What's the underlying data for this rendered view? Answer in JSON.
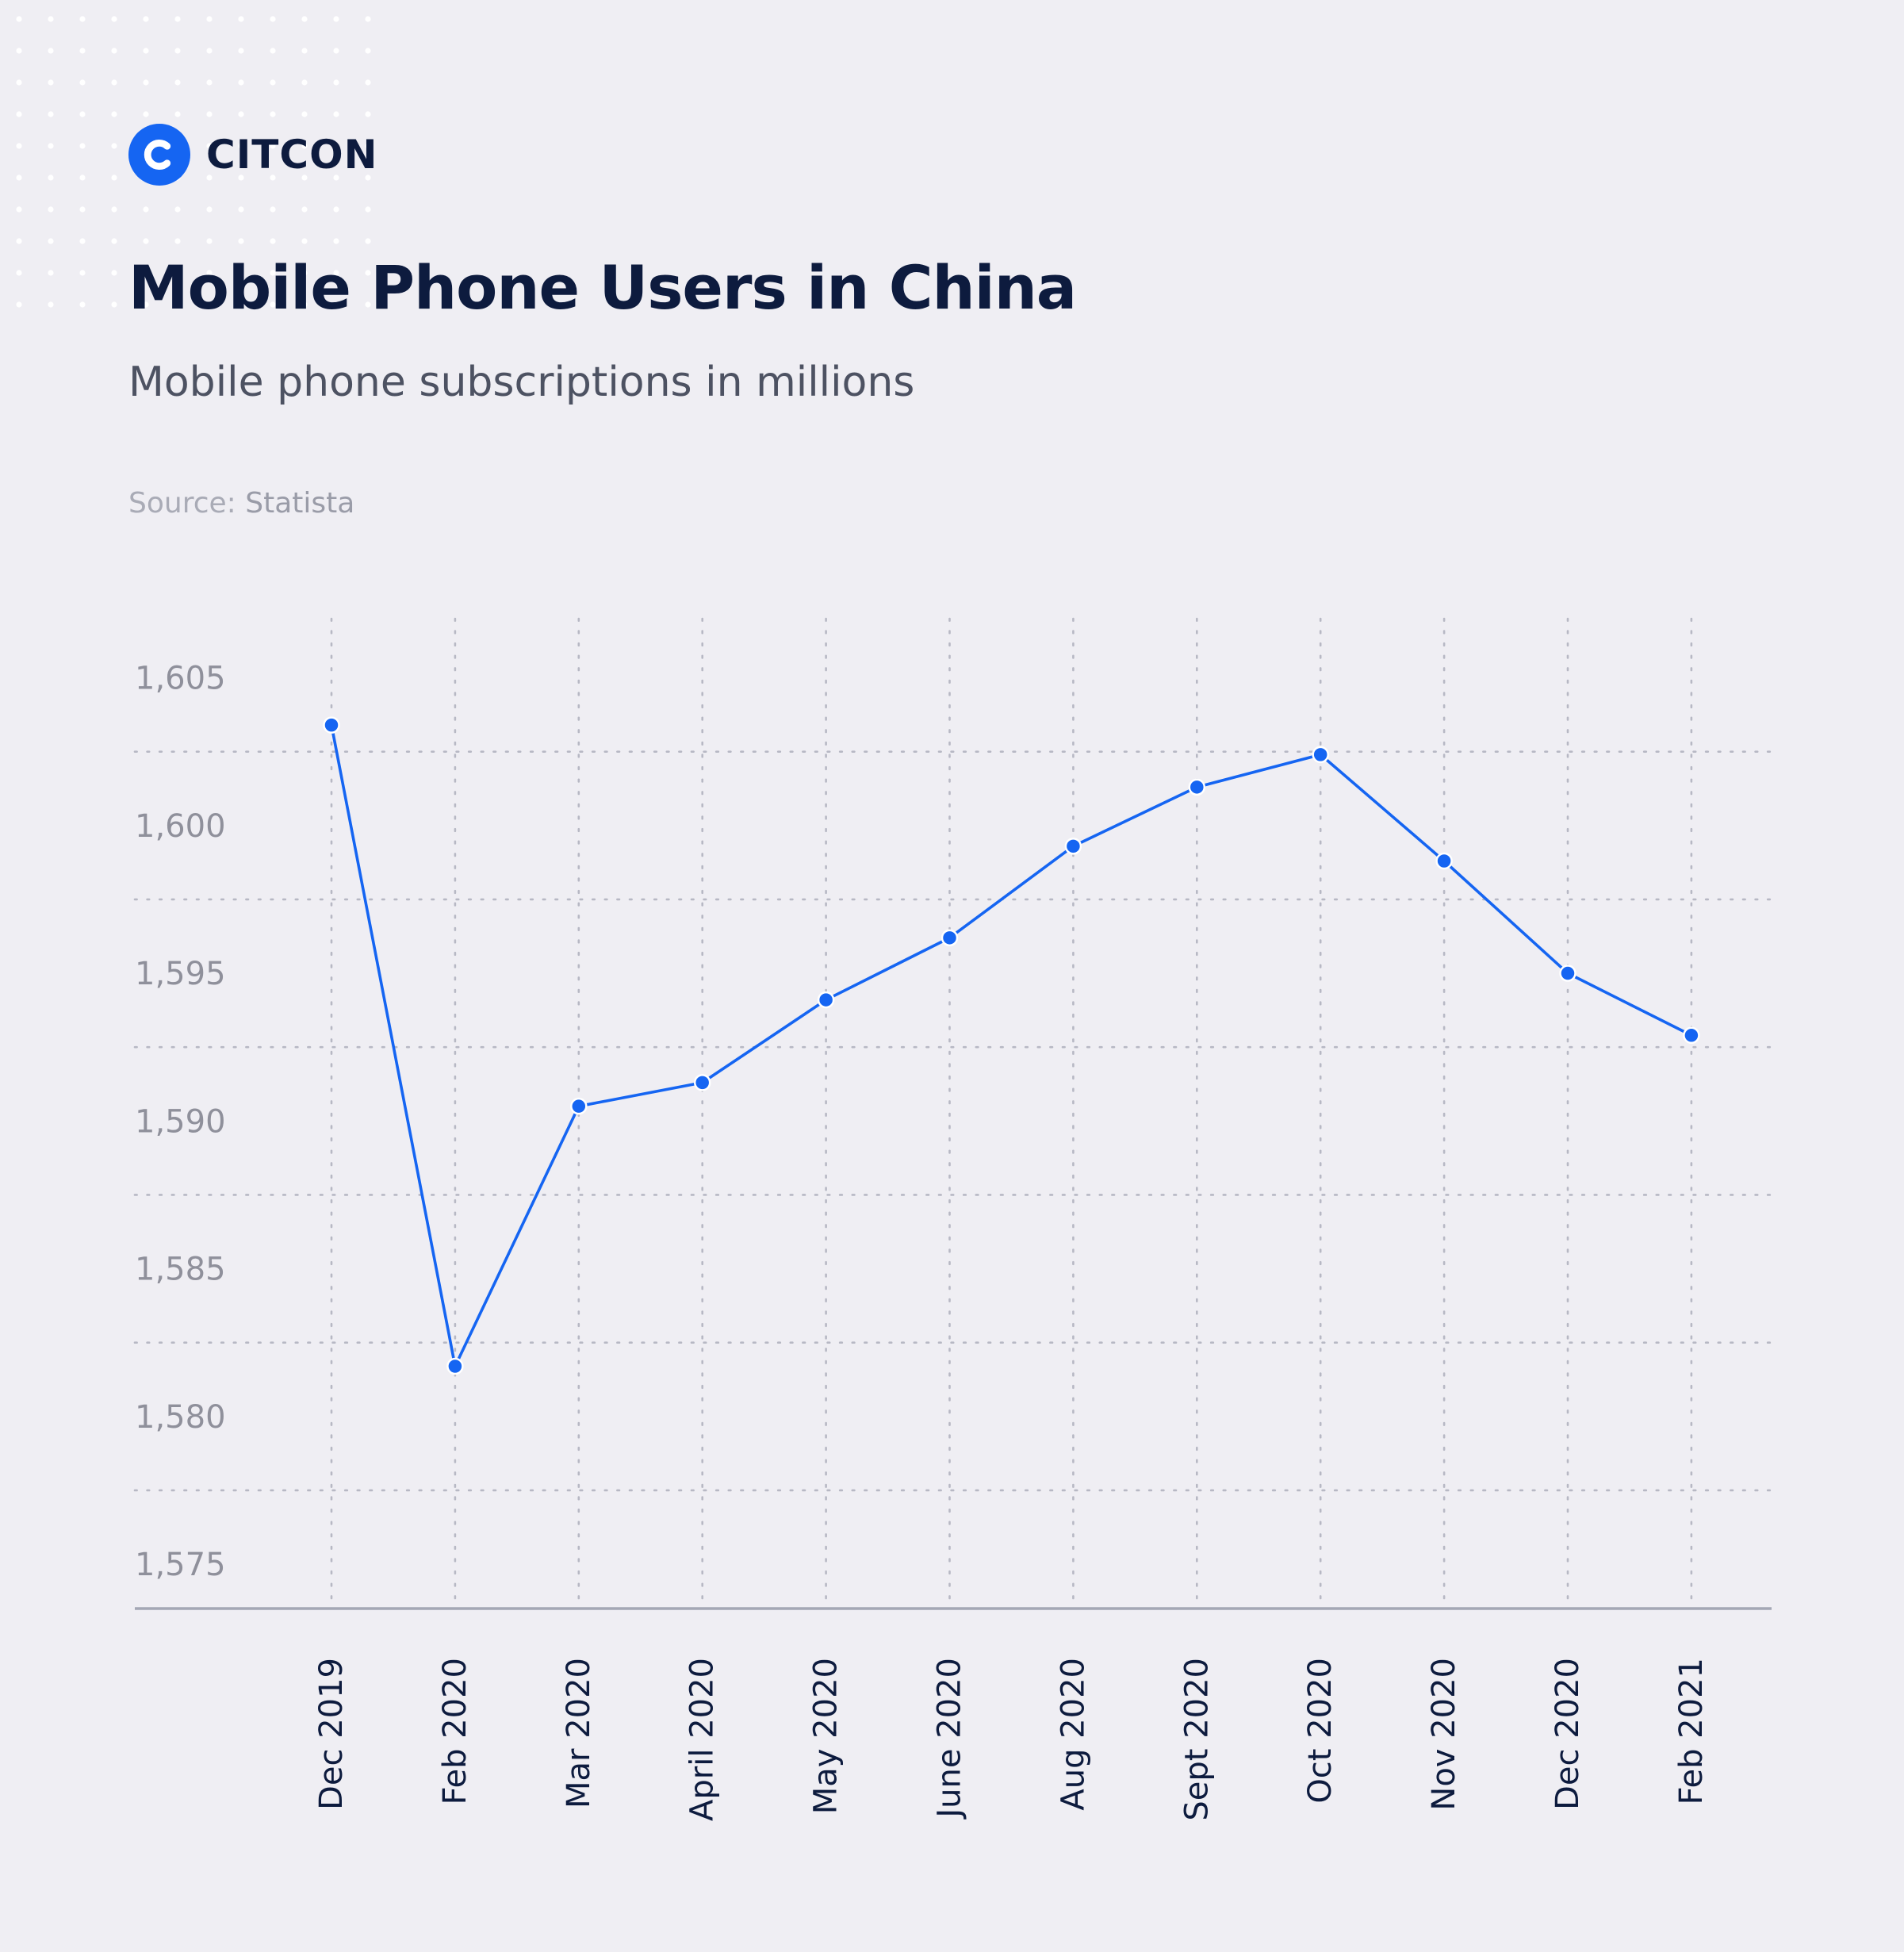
{
  "brand": {
    "name": "CITCON",
    "logo_icon": "citcon-c-logo-icon",
    "accent_color": "#1565f2"
  },
  "header": {
    "title": "Mobile Phone Users in China",
    "subtitle": "Mobile phone subscriptions in millions",
    "source_label": "Source:",
    "source_name": "Statista"
  },
  "chart_data": {
    "type": "line",
    "title": "Mobile Phone Users in China",
    "subtitle": "Mobile phone subscriptions in millions",
    "xlabel": "",
    "ylabel": "",
    "categories": [
      "Dec 2019",
      "Feb 2020",
      "Mar 2020",
      "April 2020",
      "May 2020",
      "June 2020",
      "Aug 2020",
      "Sept 2020",
      "Oct 2020",
      "Nov 2020",
      "Dec 2020",
      "Feb 2021"
    ],
    "series": [
      {
        "values": [
          1603.4,
          1581.7,
          1590.5,
          1591.3,
          1594.1,
          1596.2,
          1599.3,
          1601.3,
          1602.4,
          1598.8,
          1595.0,
          1592.9
        ],
        "color": "#1565f2"
      }
    ],
    "yticks": [
      1575,
      1580,
      1585,
      1590,
      1595,
      1600,
      1605
    ],
    "ytick_labels": [
      "1,575",
      "1,580",
      "1,585",
      "1,590",
      "1,595",
      "1,600",
      "1,605"
    ],
    "ylim": [
      1573.5,
      1607
    ],
    "grid": true,
    "legend": "none"
  }
}
